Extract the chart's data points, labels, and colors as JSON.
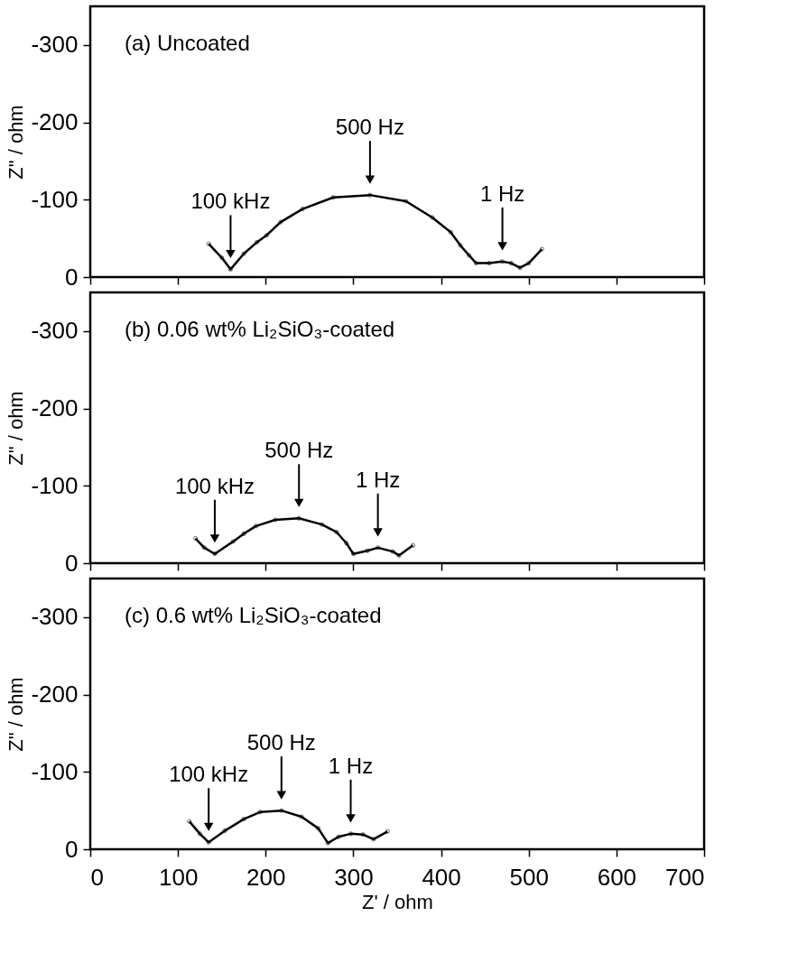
{
  "chart_data": [
    {
      "type": "line",
      "ylabel": "Z\" / ohm",
      "xlim": [
        0,
        700
      ],
      "xticks": [
        0,
        100,
        200,
        300,
        400,
        500,
        600,
        700
      ],
      "ylim": [
        0,
        -350
      ],
      "yticks": [
        0,
        -100,
        -200,
        -300
      ],
      "tick_labels": "y",
      "grid": false,
      "marker": "circle",
      "line_style": "solid",
      "series": [
        {
          "color": "#000000",
          "x": [
            135,
            150,
            160,
            175,
            190,
            201,
            217,
            242,
            277,
            319,
            360,
            390,
            411,
            422,
            432,
            440,
            455,
            470,
            480,
            490,
            500,
            515
          ],
          "values": [
            -43,
            -25,
            -10,
            -30,
            -45,
            -54,
            -71,
            -88,
            -103,
            -106,
            -98,
            -77,
            -58,
            -41,
            -28,
            -18,
            -18,
            -20,
            -18,
            -12,
            -18,
            -36
          ]
        }
      ],
      "annotations": [
        "(a) Uncoated",
        {
          "text": "100 kHz",
          "x": 160,
          "y": -10
        },
        {
          "text": "500 Hz",
          "x": 319,
          "y": -106
        },
        {
          "text": "1 Hz",
          "x": 470,
          "y": -20
        }
      ]
    },
    {
      "type": "line",
      "ylabel": "Z\" / ohm",
      "xlim": [
        0,
        700
      ],
      "xticks": [
        0,
        100,
        200,
        300,
        400,
        500,
        600,
        700
      ],
      "ylim": [
        0,
        -350
      ],
      "yticks": [
        0,
        -100,
        -200,
        -300
      ],
      "tick_labels": "y",
      "grid": false,
      "marker": "circle",
      "line_style": "solid",
      "series": [
        {
          "color": "#000000",
          "x": [
            120,
            130,
            142,
            163,
            175,
            189,
            211,
            238,
            264,
            281,
            292,
            300,
            316,
            328,
            345,
            352,
            368
          ],
          "values": [
            -32,
            -20,
            -12,
            -28,
            -38,
            -48,
            -56,
            -58,
            -50,
            -40,
            -26,
            -12,
            -16,
            -20,
            -15,
            -10,
            -23
          ]
        }
      ],
      "annotations": [
        "(b) 0.06 wt% Li₂SiO₃-coated",
        {
          "text": "100 kHz",
          "x": 142,
          "y": -12
        },
        {
          "text": "500 Hz",
          "x": 238,
          "y": -58
        },
        {
          "text": "1 Hz",
          "x": 328,
          "y": -20
        }
      ]
    },
    {
      "type": "line",
      "xlabel": "Z' / ohm",
      "ylabel": "Z\" / ohm",
      "xlim": [
        0,
        700
      ],
      "xticks": [
        0,
        100,
        200,
        300,
        400,
        500,
        600,
        700
      ],
      "ylim": [
        0,
        -350
      ],
      "yticks": [
        0,
        -100,
        -200,
        -300
      ],
      "grid": false,
      "marker": "circle",
      "line_style": "solid",
      "series": [
        {
          "color": "#000000",
          "x": [
            113,
            125,
            135,
            153.5,
            175,
            193.5,
            218,
            241,
            260,
            271,
            283,
            297,
            311,
            323,
            339
          ],
          "values": [
            -36,
            -20,
            -9,
            -24,
            -39,
            -48,
            -50,
            -42,
            -27,
            -8,
            -16,
            -20,
            -19,
            -13,
            -23
          ]
        }
      ],
      "annotations": [
        "(c) 0.6 wt% Li₂SiO₃-coated",
        {
          "text": "100 kHz",
          "x": 135,
          "y": -9
        },
        {
          "text": "500 Hz",
          "x": 218,
          "y": -50
        },
        {
          "text": "1 Hz",
          "x": 297,
          "y": -20
        }
      ]
    }
  ]
}
